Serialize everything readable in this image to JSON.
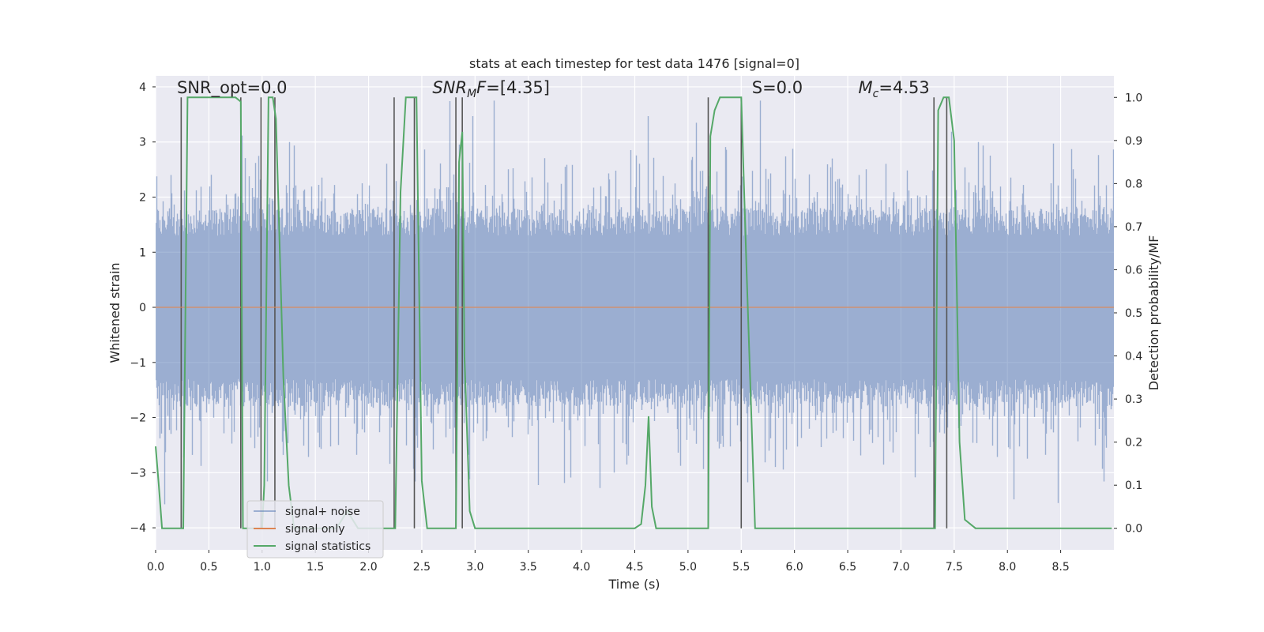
{
  "chart_data": {
    "type": "line",
    "title": "stats at each timestep for test data 1476 [signal=0]",
    "xlabel": "Time (s)",
    "ylabel_left": "Whitened strain",
    "ylabel_right": "Detection probability/MF",
    "xlim": [
      0.0,
      9.0
    ],
    "ylim_left": [
      -4.4,
      4.2
    ],
    "ylim_right": [
      -0.05,
      1.05
    ],
    "x_ticks": [
      "0.0",
      "0.5",
      "1.0",
      "1.5",
      "2.0",
      "2.5",
      "3.0",
      "3.5",
      "4.0",
      "4.5",
      "5.0",
      "5.5",
      "6.0",
      "6.5",
      "7.0",
      "7.5",
      "8.0",
      "8.5"
    ],
    "y_left_ticks": [
      "4",
      "3",
      "2",
      "1",
      "0",
      "−1",
      "−2",
      "−3",
      "−4"
    ],
    "y_right_ticks": [
      "1.0",
      "0.9",
      "0.8",
      "0.7",
      "0.6",
      "0.5",
      "0.4",
      "0.3",
      "0.2",
      "0.1",
      "0.0"
    ],
    "grid": true,
    "legend_position": "lower-left",
    "annotations": [
      {
        "text": "SNR_opt=0.0",
        "x": 0.2,
        "y": 1.01
      },
      {
        "text": "SNR_MF=[4.35]",
        "x": 2.6,
        "y": 1.01
      },
      {
        "text": "S=0.0",
        "x": 5.6,
        "y": 1.01
      },
      {
        "text": "M_c=4.53",
        "x": 6.6,
        "y": 1.01
      }
    ],
    "series": [
      {
        "name": "signal+ noise",
        "axis": "left",
        "color": "#4c72b0",
        "opacity": 0.5,
        "description": "dense whitened noise, sampled values within about -3.5 to 3.7"
      },
      {
        "name": "signal only",
        "axis": "left",
        "color": "#dd8452",
        "constant_value": 0.0
      },
      {
        "name": "signal statistics",
        "axis": "right",
        "color": "#55a868",
        "x": [
          0.0,
          0.03,
          0.06,
          0.1,
          0.17,
          0.24,
          0.26,
          0.3,
          0.4,
          0.5,
          0.6,
          0.7,
          0.75,
          0.8,
          0.82,
          0.85,
          0.9,
          0.95,
          1.0,
          1.02,
          1.06,
          1.1,
          1.13,
          1.16,
          1.2,
          1.25,
          1.3,
          1.4,
          1.6,
          1.7,
          1.8,
          1.9,
          1.95,
          2.0,
          2.1,
          2.2,
          2.25,
          2.3,
          2.35,
          2.4,
          2.45,
          2.5,
          2.55,
          2.6,
          2.7,
          2.78,
          2.82,
          2.85,
          2.88,
          2.9,
          2.95,
          3.0,
          3.5,
          4.0,
          4.5,
          4.56,
          4.6,
          4.63,
          4.66,
          4.7,
          4.75,
          5.0,
          5.19,
          5.21,
          5.25,
          5.3,
          5.35,
          5.4,
          5.5,
          5.55,
          5.63,
          6.0,
          6.5,
          7.0,
          7.3,
          7.32,
          7.35,
          7.4,
          7.45,
          7.5,
          7.55,
          7.6,
          7.7,
          8.0,
          8.5,
          8.98
        ],
        "y": [
          0.19,
          0.1,
          0.0,
          0.0,
          0.0,
          0.0,
          0.0,
          1.0,
          1.0,
          1.0,
          1.0,
          1.0,
          1.0,
          0.99,
          0.0,
          0.0,
          0.0,
          0.0,
          0.0,
          0.1,
          1.0,
          1.0,
          0.95,
          0.7,
          0.35,
          0.1,
          0.0,
          0.0,
          0.0,
          0.0,
          0.04,
          0.0,
          0.0,
          0.0,
          0.0,
          0.0,
          0.0,
          0.78,
          1.0,
          1.0,
          1.0,
          0.11,
          0.0,
          0.0,
          0.0,
          0.0,
          0.0,
          0.85,
          0.92,
          0.4,
          0.04,
          0.0,
          0.0,
          0.0,
          0.0,
          0.01,
          0.1,
          0.26,
          0.05,
          0.0,
          0.0,
          0.0,
          0.0,
          0.91,
          0.97,
          1.0,
          1.0,
          1.0,
          1.0,
          0.6,
          0.0,
          0.0,
          0.0,
          0.0,
          0.0,
          0.0,
          0.97,
          1.0,
          1.0,
          0.9,
          0.2,
          0.02,
          0.0,
          0.0,
          0.0,
          0.0
        ]
      }
    ],
    "vertical_lines_x": [
      0.24,
      0.8,
      0.99,
      1.12,
      2.24,
      2.43,
      2.82,
      2.88,
      5.19,
      5.5,
      7.31,
      7.43
    ],
    "vertical_lines_color": "#555555"
  }
}
